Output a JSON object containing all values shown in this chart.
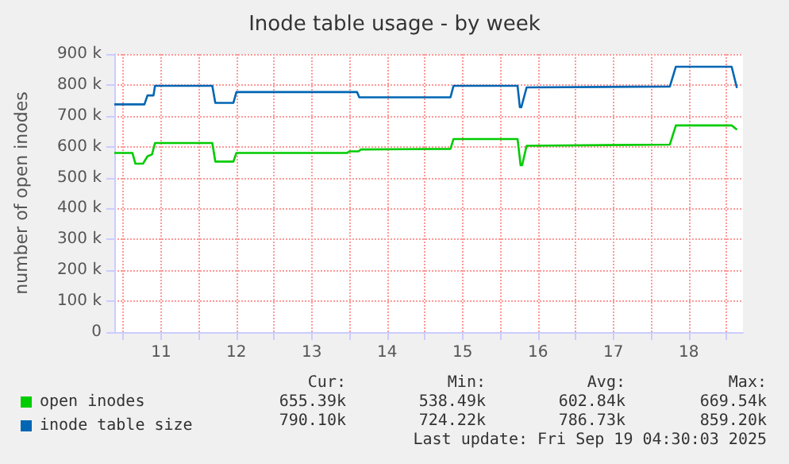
{
  "chart_data": {
    "type": "line",
    "title": "Inode table usage - by week",
    "ylabel": "number of open inodes",
    "xlim": [
      10.38,
      18.72
    ],
    "xticks": [
      {
        "value": 10.5,
        "label": null
      },
      {
        "value": 11,
        "label": "11"
      },
      {
        "value": 11.5,
        "label": null
      },
      {
        "value": 12,
        "label": "12"
      },
      {
        "value": 12.5,
        "label": null
      },
      {
        "value": 13,
        "label": "13"
      },
      {
        "value": 13.5,
        "label": null
      },
      {
        "value": 14,
        "label": "14"
      },
      {
        "value": 14.5,
        "label": null
      },
      {
        "value": 15,
        "label": "15"
      },
      {
        "value": 15.5,
        "label": null
      },
      {
        "value": 16,
        "label": "16"
      },
      {
        "value": 16.5,
        "label": null
      },
      {
        "value": 17,
        "label": "17"
      },
      {
        "value": 17.5,
        "label": null
      },
      {
        "value": 18,
        "label": "18"
      },
      {
        "value": 18.5,
        "label": null
      }
    ],
    "ylim": [
      0,
      900000
    ],
    "yticks": [
      {
        "value": 0,
        "label": "0"
      },
      {
        "value": 100000,
        "label": "100 k"
      },
      {
        "value": 200000,
        "label": "200 k"
      },
      {
        "value": 300000,
        "label": "300 k"
      },
      {
        "value": 400000,
        "label": "400 k"
      },
      {
        "value": 500000,
        "label": "500 k"
      },
      {
        "value": 600000,
        "label": "600 k"
      },
      {
        "value": 700000,
        "label": "700 k"
      },
      {
        "value": 800000,
        "label": "800 k"
      },
      {
        "value": 900000,
        "label": "900 k"
      }
    ],
    "grid": true,
    "legend": "bottom left",
    "marker": "none",
    "line_style": "solid",
    "series": [
      {
        "name": "open inodes",
        "color": "#00cc00",
        "x": [
          10.38,
          10.62,
          10.66,
          10.76,
          10.82,
          10.88,
          10.92,
          11.68,
          11.72,
          11.96,
          12.0,
          13.47,
          13.5,
          13.62,
          13.65,
          14.84,
          14.88,
          15.73,
          15.77,
          15.79,
          15.85,
          17.75,
          17.83,
          18.57,
          18.64
        ],
        "values": [
          580000,
          580000,
          545000,
          545000,
          569000,
          575000,
          612000,
          612000,
          552000,
          552000,
          580000,
          580000,
          585000,
          585000,
          591000,
          593000,
          625000,
          625000,
          540000,
          540000,
          603000,
          607000,
          669000,
          669000,
          655000
        ]
      },
      {
        "name": "inode table size",
        "color": "#0066b3",
        "x": [
          10.38,
          10.78,
          10.82,
          10.9,
          10.92,
          11.68,
          11.72,
          11.96,
          12.0,
          13.6,
          13.63,
          14.84,
          14.88,
          15.73,
          15.76,
          15.78,
          15.85,
          17.75,
          17.83,
          18.57,
          18.64
        ],
        "values": [
          737000,
          737000,
          766000,
          766000,
          797000,
          797000,
          742000,
          742000,
          777000,
          777000,
          760000,
          760000,
          797000,
          797000,
          728000,
          728000,
          792000,
          795000,
          859000,
          859000,
          790000
        ]
      }
    ],
    "annotations": [
      "Cur:",
      "Min:",
      "Avg:",
      "Max:",
      "655.39k",
      "538.49k",
      "602.84k",
      "669.54k",
      "790.10k",
      "724.22k",
      "786.73k",
      "859.20k",
      "Last update: Fri Sep 19 04:30:03 2025"
    ]
  }
}
